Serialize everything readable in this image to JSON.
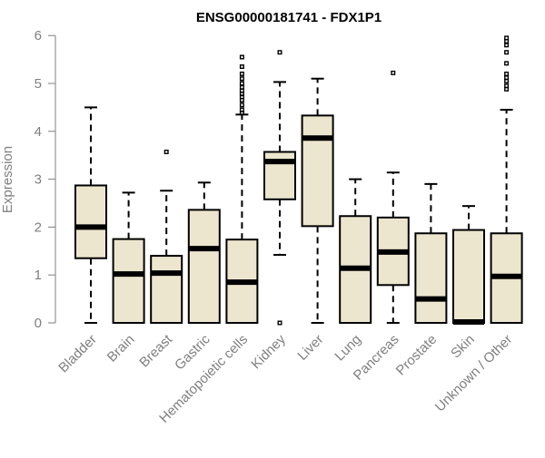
{
  "chart_data": {
    "type": "boxplot",
    "title": "ENSG00000181741 - FDX1P1",
    "xlabel": "",
    "ylabel": "Expression",
    "ylim": [
      0,
      6
    ],
    "yticks": [
      0,
      1,
      2,
      3,
      4,
      5,
      6
    ],
    "grid": false,
    "colors": {
      "box_fill": "#ede6cf",
      "stroke": "#000000",
      "axis": "#7f7f7f"
    },
    "categories": [
      "Bladder",
      "Brain",
      "Breast",
      "Gastric",
      "Hematopoietic cells",
      "Kidney",
      "Liver",
      "Lung",
      "Pancreas",
      "Prostate",
      "Skin",
      "Unknown / Other"
    ],
    "boxes": [
      {
        "category": "Bladder",
        "whisker_low": 0,
        "q1": 1.35,
        "median": 2.0,
        "q3": 2.87,
        "whisker_high": 4.5,
        "outliers": []
      },
      {
        "category": "Brain",
        "whisker_low": 0,
        "q1": 0,
        "median": 1.02,
        "q3": 1.75,
        "whisker_high": 2.72,
        "outliers": []
      },
      {
        "category": "Breast",
        "whisker_low": 0,
        "q1": 0,
        "median": 1.04,
        "q3": 1.4,
        "whisker_high": 2.76,
        "outliers": [
          3.57
        ]
      },
      {
        "category": "Gastric",
        "whisker_low": 0,
        "q1": 0,
        "median": 1.55,
        "q3": 2.36,
        "whisker_high": 2.93,
        "outliers": []
      },
      {
        "category": "Hematopoietic cells",
        "whisker_low": 0,
        "q1": 0,
        "median": 0.85,
        "q3": 1.74,
        "whisker_high": 4.35,
        "outliers": [
          4.38,
          4.45,
          4.55,
          4.65,
          4.72,
          4.78,
          4.85,
          4.92,
          5.0,
          5.1,
          5.2,
          5.35,
          5.55
        ]
      },
      {
        "category": "Kidney",
        "whisker_low": 1.42,
        "q1": 2.58,
        "median": 3.37,
        "q3": 3.57,
        "whisker_high": 5.03,
        "outliers": [
          0,
          5.65
        ]
      },
      {
        "category": "Liver",
        "whisker_low": 0,
        "q1": 2.02,
        "median": 3.86,
        "q3": 4.33,
        "whisker_high": 5.1,
        "outliers": []
      },
      {
        "category": "Lung",
        "whisker_low": 0,
        "q1": 0,
        "median": 1.14,
        "q3": 2.23,
        "whisker_high": 3.0,
        "outliers": []
      },
      {
        "category": "Pancreas",
        "whisker_low": 0,
        "q1": 0.79,
        "median": 1.48,
        "q3": 2.2,
        "whisker_high": 3.14,
        "outliers": [
          5.22
        ]
      },
      {
        "category": "Prostate",
        "whisker_low": 0,
        "q1": 0,
        "median": 0.5,
        "q3": 1.87,
        "whisker_high": 2.9,
        "outliers": []
      },
      {
        "category": "Skin",
        "whisker_low": 0,
        "q1": 0,
        "median": 0.02,
        "q3": 1.94,
        "whisker_high": 2.44,
        "outliers": []
      },
      {
        "category": "Unknown / Other",
        "whisker_low": 0,
        "q1": 0,
        "median": 0.97,
        "q3": 1.87,
        "whisker_high": 4.45,
        "outliers": [
          4.88,
          4.95,
          5.05,
          5.12,
          5.2,
          5.42,
          5.65,
          5.8,
          5.88,
          5.95
        ]
      }
    ]
  }
}
